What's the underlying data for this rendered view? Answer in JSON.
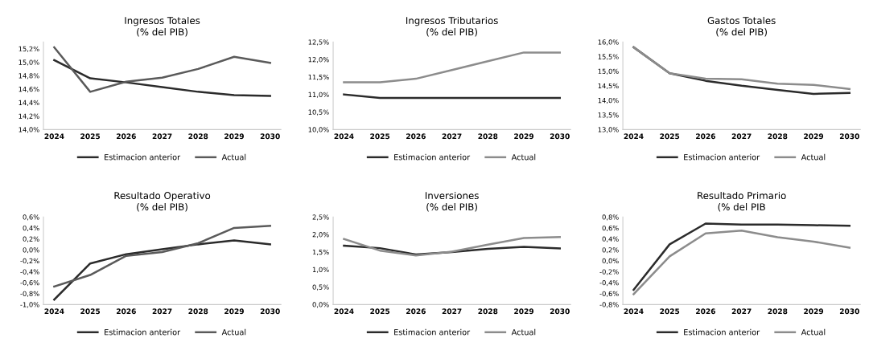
{
  "chart_data": [
    {
      "type": "line",
      "title": "Ingresos Totales\n(% del PIB)",
      "categories": [
        "2024",
        "2025",
        "2026",
        "2027",
        "2028",
        "2029",
        "2030"
      ],
      "series": [
        {
          "name": "Estimacion anterior",
          "color": "#2b2b2b",
          "values": [
            15.03,
            14.76,
            14.7,
            14.63,
            14.56,
            14.51,
            14.5
          ]
        },
        {
          "name": "Actual",
          "color": "#5a5a5a",
          "values": [
            15.22,
            14.56,
            14.71,
            14.77,
            14.9,
            15.08,
            14.99
          ]
        }
      ],
      "ylim": [
        14.0,
        15.3
      ],
      "yticks": [
        {
          "value": 14.0,
          "label": "14,0%"
        },
        {
          "value": 14.2,
          "label": "14,2%"
        },
        {
          "value": 14.4,
          "label": "14,4%"
        },
        {
          "value": 14.6,
          "label": "14,6%"
        },
        {
          "value": 14.8,
          "label": "14,8%"
        },
        {
          "value": 15.0,
          "label": "15,0%"
        },
        {
          "value": 15.2,
          "label": "15,2%"
        }
      ],
      "grid": false,
      "legend": "bottom",
      "marker": "none",
      "line_style": "solid"
    },
    {
      "type": "line",
      "title": "Ingresos Tributarios\n(% del PIB)",
      "categories": [
        "2024",
        "2025",
        "2026",
        "2027",
        "2028",
        "2029",
        "2030"
      ],
      "series": [
        {
          "name": "Estimacion anterior",
          "color": "#2b2b2b",
          "values": [
            11.0,
            10.9,
            10.9,
            10.9,
            10.9,
            10.9,
            10.9
          ]
        },
        {
          "name": "Actual",
          "color": "#8c8c8c",
          "values": [
            11.35,
            11.35,
            11.45,
            11.7,
            11.95,
            12.2,
            12.2
          ]
        }
      ],
      "ylim": [
        10.0,
        12.5
      ],
      "yticks": [
        {
          "value": 10.0,
          "label": "10,0%"
        },
        {
          "value": 10.5,
          "label": "10,5%"
        },
        {
          "value": 11.0,
          "label": "11,0%"
        },
        {
          "value": 11.5,
          "label": "11,5%"
        },
        {
          "value": 12.0,
          "label": "12,0%"
        },
        {
          "value": 12.5,
          "label": "12,5%"
        }
      ],
      "grid": false,
      "legend": "bottom",
      "marker": "none",
      "line_style": "solid"
    },
    {
      "type": "line",
      "title": "Gastos Totales\n(% del PIB)",
      "categories": [
        "2024",
        "2025",
        "2026",
        "2027",
        "2028",
        "2029",
        "2030"
      ],
      "series": [
        {
          "name": "Estimacion anterior",
          "color": "#2b2b2b",
          "values": [
            15.82,
            14.93,
            14.67,
            14.5,
            14.36,
            14.22,
            14.25
          ]
        },
        {
          "name": "Actual",
          "color": "#8c8c8c",
          "values": [
            15.82,
            14.93,
            14.74,
            14.72,
            14.57,
            14.53,
            14.39
          ]
        }
      ],
      "ylim": [
        13.0,
        16.0
      ],
      "yticks": [
        {
          "value": 13.0,
          "label": "13,0%"
        },
        {
          "value": 13.5,
          "label": "13,5%"
        },
        {
          "value": 14.0,
          "label": "14,0%"
        },
        {
          "value": 14.5,
          "label": "14,5%"
        },
        {
          "value": 15.0,
          "label": "15,0%"
        },
        {
          "value": 15.5,
          "label": "15,5%"
        },
        {
          "value": 16.0,
          "label": "16,0%"
        }
      ],
      "grid": false,
      "legend": "bottom",
      "marker": "none",
      "line_style": "solid"
    },
    {
      "type": "line",
      "title": "Resultado Operativo\n(% del PIB)",
      "categories": [
        "2024",
        "2025",
        "2026",
        "2027",
        "2028",
        "2029",
        "2030"
      ],
      "series": [
        {
          "name": "Estimacion anterior",
          "color": "#2b2b2b",
          "values": [
            -0.91,
            -0.25,
            -0.08,
            0.01,
            0.1,
            0.17,
            0.1
          ]
        },
        {
          "name": "Actual",
          "color": "#5a5a5a",
          "values": [
            -0.67,
            -0.46,
            -0.11,
            -0.04,
            0.12,
            0.4,
            0.44
          ]
        }
      ],
      "ylim": [
        -1.0,
        0.6
      ],
      "yticks": [
        {
          "value": -1.0,
          "label": "-1,0%"
        },
        {
          "value": -0.8,
          "label": "-0,8%"
        },
        {
          "value": -0.6,
          "label": "-0,6%"
        },
        {
          "value": -0.4,
          "label": "-0,4%"
        },
        {
          "value": -0.2,
          "label": "-0,2%"
        },
        {
          "value": 0.0,
          "label": "0,0%"
        },
        {
          "value": 0.2,
          "label": "0,2%"
        },
        {
          "value": 0.4,
          "label": "0,4%"
        },
        {
          "value": 0.6,
          "label": "0,6%"
        }
      ],
      "grid": false,
      "legend": "bottom",
      "marker": "none",
      "line_style": "solid"
    },
    {
      "type": "line",
      "title": "Inversiones\n(% del PIB)",
      "categories": [
        "2024",
        "2025",
        "2026",
        "2027",
        "2028",
        "2029",
        "2030"
      ],
      "series": [
        {
          "name": "Estimacion anterior",
          "color": "#2b2b2b",
          "values": [
            1.68,
            1.61,
            1.43,
            1.5,
            1.59,
            1.65,
            1.6
          ]
        },
        {
          "name": "Actual",
          "color": "#8c8c8c",
          "values": [
            1.87,
            1.54,
            1.4,
            1.51,
            1.71,
            1.9,
            1.93
          ]
        }
      ],
      "ylim": [
        0.0,
        2.5
      ],
      "yticks": [
        {
          "value": 0.0,
          "label": "0,0%"
        },
        {
          "value": 0.5,
          "label": "0,5%"
        },
        {
          "value": 1.0,
          "label": "1,0%"
        },
        {
          "value": 1.5,
          "label": "1,5%"
        },
        {
          "value": 2.0,
          "label": "2,0%"
        },
        {
          "value": 2.5,
          "label": "2,5%"
        }
      ],
      "grid": false,
      "legend": "bottom",
      "marker": "none",
      "line_style": "solid"
    },
    {
      "type": "line",
      "title": "Resultado Primario\n(% del PIB",
      "categories": [
        "2024",
        "2025",
        "2026",
        "2027",
        "2028",
        "2029",
        "2030"
      ],
      "series": [
        {
          "name": "Estimacion anterior",
          "color": "#2b2b2b",
          "values": [
            -0.53,
            0.3,
            0.68,
            0.66,
            0.66,
            0.65,
            0.64
          ]
        },
        {
          "name": "Actual",
          "color": "#8c8c8c",
          "values": [
            -0.61,
            0.08,
            0.5,
            0.55,
            0.43,
            0.35,
            0.24
          ]
        }
      ],
      "ylim": [
        -0.8,
        0.8
      ],
      "yticks": [
        {
          "value": -0.8,
          "label": "-0,8%"
        },
        {
          "value": -0.6,
          "label": "-0,6%"
        },
        {
          "value": -0.4,
          "label": "-0,4%"
        },
        {
          "value": -0.2,
          "label": "-0,2%"
        },
        {
          "value": 0.0,
          "label": "0,0%"
        },
        {
          "value": 0.2,
          "label": "0,2%"
        },
        {
          "value": 0.4,
          "label": "0,4%"
        },
        {
          "value": 0.6,
          "label": "0,6%"
        },
        {
          "value": 0.8,
          "label": "0,8%"
        }
      ],
      "grid": false,
      "legend": "bottom",
      "marker": "none",
      "line_style": "solid"
    }
  ]
}
